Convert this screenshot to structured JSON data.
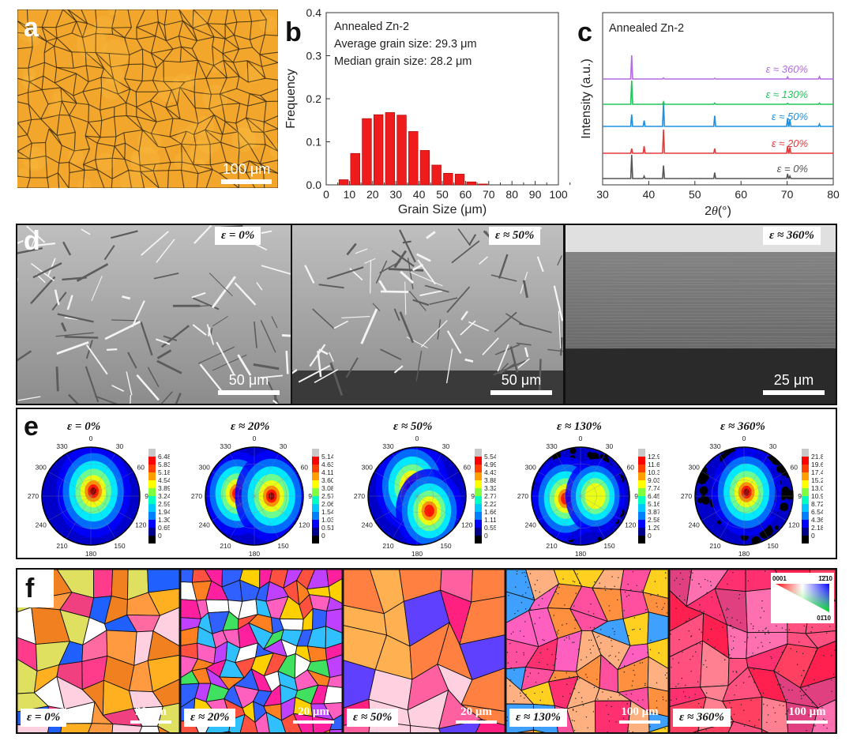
{
  "panel_a": {
    "label": "a",
    "scale_text": "100 μm",
    "background_color": "#f2a72c",
    "boundary_color": "#3a2a10"
  },
  "panel_b": {
    "label": "b",
    "legend_lines": [
      "Annealed Zn-2",
      "Average grain size: 29.3 μm",
      "Median grain size: 28.2 μm"
    ],
    "chart_data": {
      "type": "bar",
      "x": [
        7.5,
        12.5,
        17.5,
        22.5,
        27.5,
        32.5,
        37.5,
        42.5,
        47.5,
        52.5,
        57.5,
        62.5,
        67.5
      ],
      "values": [
        0.012,
        0.073,
        0.154,
        0.163,
        0.168,
        0.162,
        0.124,
        0.08,
        0.046,
        0.027,
        0.025,
        0.007,
        0.002
      ],
      "bar_color": "#ee1c1c",
      "xlabel": "Grain Size (μm)",
      "ylabel": "Frequency",
      "xlim": [
        0,
        100
      ],
      "ylim": [
        0,
        0.4
      ],
      "xticks": [
        "0",
        "10",
        "20",
        "30",
        "40",
        "50",
        "60",
        "70",
        "80",
        "90",
        "100"
      ],
      "yticks": [
        "0.0",
        "0.1",
        "0.2",
        "0.3",
        "0.4"
      ]
    }
  },
  "panel_c": {
    "label": "c",
    "title": "Annealed Zn-2",
    "chart_data": {
      "type": "line",
      "xlabel_prefix": "2",
      "xlabel_theta": "θ",
      "xlabel_unit": "(°)",
      "ylabel": "Intensity (a.u.)",
      "xlim": [
        30,
        80
      ],
      "xticks": [
        "30",
        "40",
        "50",
        "60",
        "70",
        "80"
      ],
      "series": [
        {
          "name": "ε = 0%",
          "color": "#555555",
          "peaks": [
            [
              36.3,
              1.0
            ],
            [
              39.0,
              0.1
            ],
            [
              43.2,
              0.55
            ],
            [
              54.3,
              0.25
            ],
            [
              70.1,
              0.2
            ],
            [
              70.6,
              0.1
            ]
          ]
        },
        {
          "name": "ε ≈ 20%",
          "color": "#e33b3b",
          "peaks": [
            [
              36.3,
              0.2
            ],
            [
              39.0,
              0.3
            ],
            [
              43.2,
              1.0
            ],
            [
              54.3,
              0.2
            ],
            [
              70.1,
              0.3
            ],
            [
              70.6,
              0.25
            ]
          ]
        },
        {
          "name": "ε ≈ 50%",
          "color": "#1f8fe0",
          "peaks": [
            [
              36.3,
              0.5
            ],
            [
              39.0,
              0.25
            ],
            [
              43.2,
              1.0
            ],
            [
              54.3,
              0.45
            ],
            [
              70.1,
              0.35
            ],
            [
              70.6,
              0.3
            ],
            [
              77.0,
              0.1
            ]
          ]
        },
        {
          "name": "ε ≈ 130%",
          "color": "#22c55a",
          "peaks": [
            [
              36.3,
              1.0
            ],
            [
              43.2,
              0.1
            ],
            [
              54.3,
              0.05
            ],
            [
              70.1,
              0.04
            ],
            [
              77.0,
              0.05
            ]
          ]
        },
        {
          "name": "ε ≈ 360%",
          "color": "#b26be0",
          "peaks": [
            [
              36.3,
              1.0
            ],
            [
              43.2,
              0.04
            ],
            [
              54.3,
              0.03
            ],
            [
              70.1,
              0.08
            ],
            [
              77.0,
              0.1
            ]
          ]
        }
      ]
    }
  },
  "panel_d": {
    "label": "d",
    "images": [
      {
        "strain": "ε = 0%",
        "scale": "50 μm"
      },
      {
        "strain": "ε ≈ 50%",
        "scale": "50 μm"
      },
      {
        "strain": "ε ≈ 360%",
        "scale": "25 μm"
      }
    ]
  },
  "panel_e": {
    "label": "e",
    "angle_labels": [
      "0",
      "30",
      "60",
      "90",
      "120",
      "150",
      "180",
      "210",
      "240",
      "270",
      "300",
      "330"
    ],
    "figures": [
      {
        "strain": "ε = 0%",
        "scale": [
          "6.48",
          "5.83",
          "5.18",
          "4.54",
          "3.89",
          "3.24",
          "2.59",
          "1.94",
          "1.30",
          "0.65",
          "0"
        ],
        "spots": [
          [
            0.05,
            -0.1,
            1.0
          ]
        ]
      },
      {
        "strain": "ε ≈ 20%",
        "scale": [
          "5.14",
          "4.63",
          "4.11",
          "3.60",
          "3.08",
          "2.57",
          "2.06",
          "1.54",
          "1.03",
          "0.51",
          "0"
        ],
        "spots": [
          [
            -0.35,
            -0.05,
            0.75
          ],
          [
            0.35,
            0.0,
            0.95
          ]
        ]
      },
      {
        "strain": "ε ≈ 50%",
        "scale": [
          "5.54",
          "4.99",
          "4.43",
          "3.88",
          "3.32",
          "2.77",
          "2.22",
          "1.66",
          "1.11",
          "0.55",
          "0"
        ],
        "spots": [
          [
            -0.1,
            -0.2,
            0.95
          ],
          [
            0.25,
            0.3,
            0.75
          ]
        ]
      },
      {
        "strain": "ε ≈ 130%",
        "scale": [
          "12.90",
          "11.61",
          "10.32",
          "9.03",
          "7.74",
          "6.45",
          "5.16",
          "3.87",
          "2.58",
          "1.29",
          "0"
        ],
        "spots": [
          [
            -0.3,
            0.05,
            0.75
          ],
          [
            0.3,
            0.0,
            0.5
          ]
        ]
      },
      {
        "strain": "ε ≈ 360%",
        "scale": [
          "21.80",
          "19.62",
          "17.44",
          "15.26",
          "13.08",
          "10.90",
          "8.72",
          "6.54",
          "4.36",
          "2.18",
          "0"
        ],
        "spots": [
          [
            0.05,
            -0.08,
            0.85
          ]
        ]
      }
    ]
  },
  "panel_f": {
    "label": "f",
    "legend_0001": "0001",
    "legend_2110": "1̄2̄10",
    "legend_0110": "01̄10",
    "images": [
      {
        "strain": "ε = 0%",
        "scale": "20 μm"
      },
      {
        "strain": "ε ≈ 20%",
        "scale": "20 μm"
      },
      {
        "strain": "ε ≈ 50%",
        "scale": "20 μm"
      },
      {
        "strain": "ε ≈ 130%",
        "scale": "100 μm"
      },
      {
        "strain": "ε ≈ 360%",
        "scale": "100 μm"
      }
    ]
  }
}
